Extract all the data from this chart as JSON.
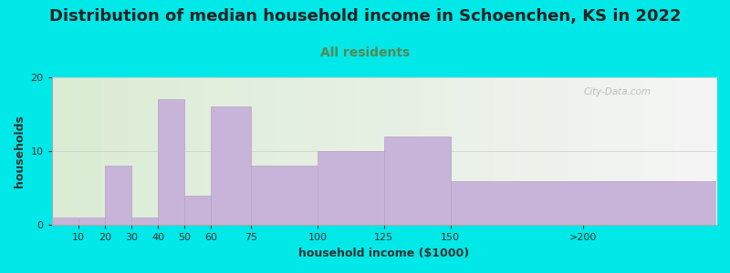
{
  "title": "Distribution of median household income in Schoenchen, KS in 2022",
  "subtitle": "All residents",
  "xlabel": "household income ($1000)",
  "ylabel": "households",
  "bar_left_edges": [
    0,
    10,
    20,
    30,
    40,
    50,
    60,
    75,
    100,
    125,
    150
  ],
  "bar_right_edges": [
    10,
    20,
    30,
    40,
    50,
    60,
    75,
    100,
    125,
    150,
    250
  ],
  "bar_heights": [
    1,
    1,
    8,
    1,
    17,
    4,
    16,
    8,
    10,
    12,
    6
  ],
  "xtick_labels": [
    "10",
    "20",
    "30",
    "40",
    "50",
    "60",
    "75",
    "100",
    "125",
    "150",
    ">200"
  ],
  "xtick_pos_with_last": [
    10,
    20,
    30,
    40,
    50,
    60,
    75,
    100,
    125,
    150,
    200
  ],
  "xlim": [
    0,
    250
  ],
  "bar_color": "#c8b4d8",
  "bar_edgecolor": "#b8a0cc",
  "background_color": "#00e8e8",
  "plot_bg_left": "#daecd4",
  "plot_bg_right": "#f5f5f5",
  "title_fontsize": 13,
  "subtitle_fontsize": 10,
  "subtitle_color": "#558855",
  "xlabel_fontsize": 9,
  "ylabel_fontsize": 9,
  "tick_fontsize": 8,
  "ylim": [
    0,
    20
  ],
  "yticks": [
    0,
    10,
    20
  ],
  "watermark": "City-Data.com"
}
